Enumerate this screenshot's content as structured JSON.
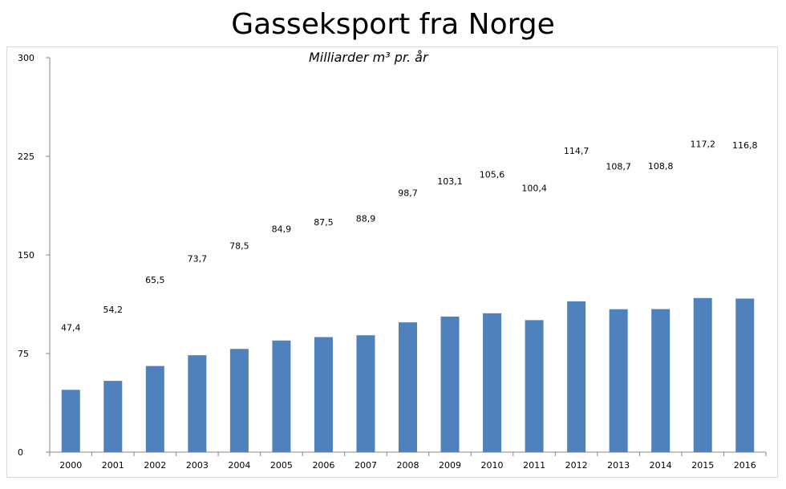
{
  "chart_data": {
    "type": "bar",
    "title": "Gasseksport fra Norge",
    "subtitle": "Milliarder m³ pr. år",
    "categories": [
      "2000",
      "2001",
      "2002",
      "2003",
      "2004",
      "2005",
      "2006",
      "2007",
      "2008",
      "2009",
      "2010",
      "2011",
      "2012",
      "2013",
      "2014",
      "2015",
      "2016"
    ],
    "values": [
      47.4,
      54.2,
      65.5,
      73.7,
      78.5,
      84.9,
      87.5,
      88.9,
      98.7,
      103.1,
      105.6,
      100.4,
      114.7,
      108.7,
      108.8,
      117.2,
      116.8
    ],
    "value_labels": [
      "47,4",
      "54,2",
      "65,5",
      "73,7",
      "78,5",
      "84,9",
      "87,5",
      "88,9",
      "98,7",
      "103,1",
      "105,6",
      "100,4",
      "114,7",
      "108,7",
      "108,8",
      "117,2",
      "116,8"
    ],
    "ylim": [
      0,
      300
    ],
    "yticks": [
      0,
      75,
      150,
      225,
      300
    ],
    "xlabel": "",
    "ylabel": "",
    "grid": false,
    "bar_color": "#4f81bd"
  }
}
